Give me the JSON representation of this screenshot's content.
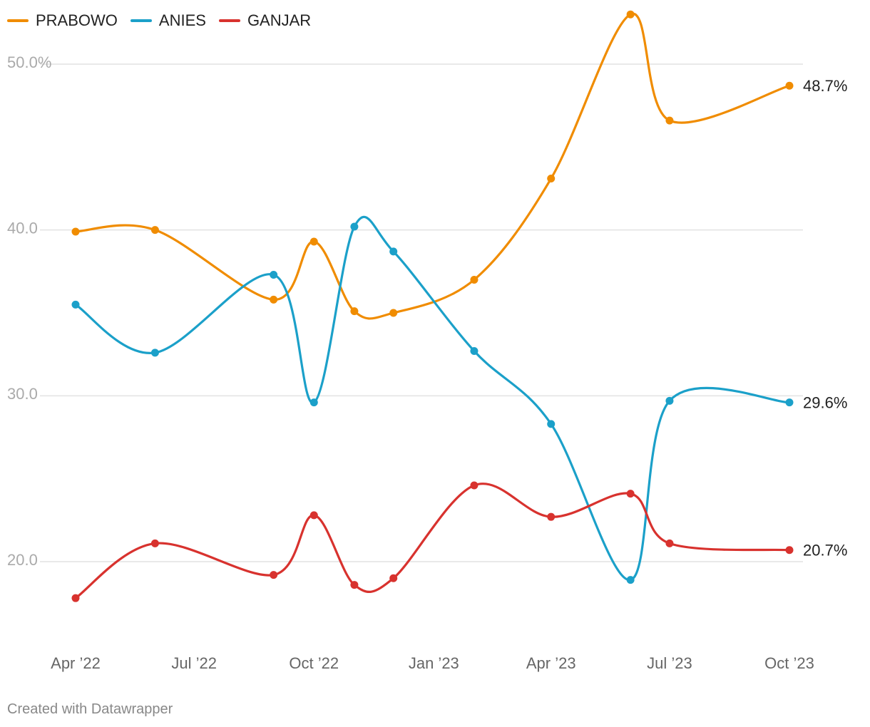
{
  "footer": "Created with Datawrapper",
  "chart_data": {
    "type": "line",
    "title": "",
    "xlabel": "",
    "ylabel": "",
    "legend_placement": "top-left",
    "grid": true,
    "ylim": [
      15,
      53
    ],
    "y_ticks": [
      {
        "value": 50,
        "label": "50.0%"
      },
      {
        "value": 40,
        "label": "40.0"
      },
      {
        "value": 30,
        "label": "30.0"
      },
      {
        "value": 20,
        "label": "20.0"
      }
    ],
    "x_ticks": [
      {
        "date": "2022-04-01",
        "label": "Apr ’22"
      },
      {
        "date": "2022-07-01",
        "label": "Jul ’22"
      },
      {
        "date": "2022-10-01",
        "label": "Oct ’22"
      },
      {
        "date": "2023-01-01",
        "label": "Jan ’23"
      },
      {
        "date": "2023-04-01",
        "label": "Apr ’23"
      },
      {
        "date": "2023-07-01",
        "label": "Jul ’23"
      },
      {
        "date": "2023-10-01",
        "label": "Oct ’23"
      }
    ],
    "series": [
      {
        "name": "PRABOWO",
        "color": "#f08c00",
        "end_label": "48.7%",
        "points": [
          {
            "date": "2022-04-01",
            "value": 39.9
          },
          {
            "date": "2022-06-01",
            "value": 40.0
          },
          {
            "date": "2022-08-31",
            "value": 35.8
          },
          {
            "date": "2022-10-01",
            "value": 39.3
          },
          {
            "date": "2022-11-01",
            "value": 35.1
          },
          {
            "date": "2022-12-01",
            "value": 35.0
          },
          {
            "date": "2023-02-01",
            "value": 37.0
          },
          {
            "date": "2023-04-01",
            "value": 43.1
          },
          {
            "date": "2023-06-01",
            "value": 53.0
          },
          {
            "date": "2023-07-01",
            "value": 46.6
          },
          {
            "date": "2023-10-01",
            "value": 48.7
          }
        ]
      },
      {
        "name": "ANIES",
        "color": "#1ba0c9",
        "end_label": "29.6%",
        "points": [
          {
            "date": "2022-04-01",
            "value": 35.5
          },
          {
            "date": "2022-06-01",
            "value": 32.6
          },
          {
            "date": "2022-08-31",
            "value": 37.3
          },
          {
            "date": "2022-10-01",
            "value": 29.6
          },
          {
            "date": "2022-11-01",
            "value": 40.2
          },
          {
            "date": "2022-12-01",
            "value": 38.7
          },
          {
            "date": "2023-02-01",
            "value": 32.7
          },
          {
            "date": "2023-04-01",
            "value": 28.3
          },
          {
            "date": "2023-06-01",
            "value": 18.9
          },
          {
            "date": "2023-07-01",
            "value": 29.7
          },
          {
            "date": "2023-10-01",
            "value": 29.6
          }
        ]
      },
      {
        "name": "GANJAR",
        "color": "#d8322e",
        "end_label": "20.7%",
        "points": [
          {
            "date": "2022-04-01",
            "value": 17.8
          },
          {
            "date": "2022-06-01",
            "value": 21.1
          },
          {
            "date": "2022-08-31",
            "value": 19.2
          },
          {
            "date": "2022-10-01",
            "value": 22.8
          },
          {
            "date": "2022-11-01",
            "value": 18.6
          },
          {
            "date": "2022-12-01",
            "value": 19.0
          },
          {
            "date": "2023-02-01",
            "value": 24.6
          },
          {
            "date": "2023-04-01",
            "value": 22.7
          },
          {
            "date": "2023-06-01",
            "value": 24.1
          },
          {
            "date": "2023-07-01",
            "value": 21.1
          },
          {
            "date": "2023-10-01",
            "value": 20.7
          }
        ]
      }
    ]
  }
}
